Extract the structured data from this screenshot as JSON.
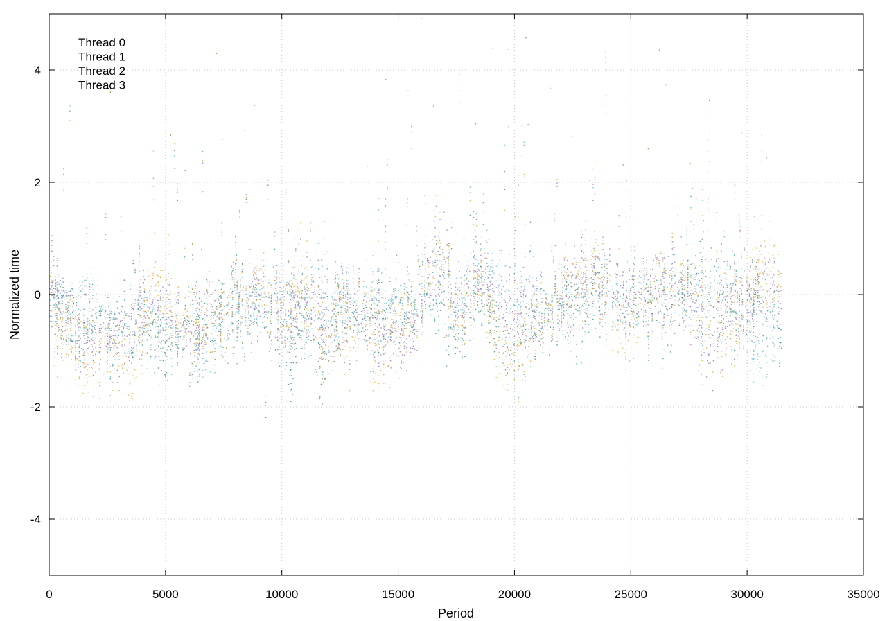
{
  "chart_data": {
    "type": "scatter",
    "title": "",
    "xlabel": "Period",
    "ylabel": "Normalized time",
    "xlim": [
      0,
      35000
    ],
    "ylim": [
      -5,
      5
    ],
    "x_ticks": [
      "0",
      "5000",
      "10000",
      "15000",
      "20000",
      "25000",
      "30000",
      "35000"
    ],
    "y_ticks": [
      "-4",
      "-2",
      "0",
      "2",
      "4"
    ],
    "grid": true,
    "legend_position": "top-left",
    "point_count_per_series": 31500,
    "series": [
      {
        "name": "Thread 0",
        "color": "#9467bd",
        "trend": [
          [
            0,
            0.2
          ],
          [
            1000,
            -0.6
          ],
          [
            2000,
            -0.8
          ],
          [
            3000,
            -0.9
          ],
          [
            4000,
            -0.3
          ],
          [
            5000,
            -0.4
          ],
          [
            6000,
            -0.8
          ],
          [
            7000,
            -0.5
          ],
          [
            8000,
            -0.3
          ],
          [
            9000,
            0.0
          ],
          [
            10000,
            -0.3
          ],
          [
            11000,
            -0.2
          ],
          [
            12000,
            -0.4
          ],
          [
            13000,
            -0.2
          ],
          [
            14000,
            -0.5
          ],
          [
            15000,
            -0.9
          ],
          [
            16000,
            -0.3
          ],
          [
            16600,
            0.8
          ],
          [
            17500,
            -0.2
          ],
          [
            18500,
            0.4
          ],
          [
            19500,
            -0.4
          ],
          [
            20500,
            -0.2
          ],
          [
            21500,
            -0.3
          ],
          [
            22500,
            0.1
          ],
          [
            23500,
            0.3
          ],
          [
            24500,
            0.2
          ],
          [
            25500,
            0.0
          ],
          [
            26500,
            0.1
          ],
          [
            27500,
            -0.2
          ],
          [
            28300,
            -1.0
          ],
          [
            29500,
            -0.3
          ],
          [
            30500,
            0.1
          ],
          [
            31400,
            0.2
          ]
        ]
      },
      {
        "name": "Thread 1",
        "color": "#2e8b6e",
        "trend": [
          [
            0,
            0.0
          ],
          [
            1000,
            -0.6
          ],
          [
            2000,
            -0.5
          ],
          [
            3000,
            -0.6
          ],
          [
            4000,
            -0.5
          ],
          [
            5000,
            -1.0
          ],
          [
            6000,
            -0.6
          ],
          [
            7000,
            -0.3
          ],
          [
            8000,
            -0.2
          ],
          [
            9000,
            -0.3
          ],
          [
            10000,
            -0.5
          ],
          [
            10300,
            -1.3
          ],
          [
            11000,
            -0.3
          ],
          [
            11500,
            -1.4
          ],
          [
            12500,
            -0.2
          ],
          [
            13500,
            -0.5
          ],
          [
            14500,
            -0.3
          ],
          [
            15500,
            -0.2
          ],
          [
            16500,
            0.2
          ],
          [
            17500,
            -0.6
          ],
          [
            18500,
            0.0
          ],
          [
            19500,
            -0.7
          ],
          [
            20500,
            -0.8
          ],
          [
            21500,
            -0.3
          ],
          [
            22500,
            -0.1
          ],
          [
            23500,
            0.0
          ],
          [
            24500,
            0.2
          ],
          [
            25500,
            -0.1
          ],
          [
            26500,
            -0.5
          ],
          [
            27500,
            0.2
          ],
          [
            28500,
            0.1
          ],
          [
            29500,
            -0.2
          ],
          [
            30500,
            0.0
          ],
          [
            31400,
            -0.5
          ]
        ]
      },
      {
        "name": "Thread 2",
        "color": "#5ab4d2",
        "trend": [
          [
            0,
            0.1
          ],
          [
            1000,
            -0.5
          ],
          [
            2000,
            -0.4
          ],
          [
            3000,
            -0.6
          ],
          [
            4000,
            -0.4
          ],
          [
            5000,
            -0.6
          ],
          [
            6000,
            -0.7
          ],
          [
            6500,
            -1.2
          ],
          [
            7500,
            -0.4
          ],
          [
            8500,
            -0.3
          ],
          [
            9500,
            -0.1
          ],
          [
            10500,
            -0.3
          ],
          [
            11500,
            0.0
          ],
          [
            12500,
            -0.2
          ],
          [
            13500,
            -0.1
          ],
          [
            14500,
            -0.2
          ],
          [
            15500,
            -0.3
          ],
          [
            16500,
            0.2
          ],
          [
            17500,
            -0.1
          ],
          [
            18500,
            0.5
          ],
          [
            19500,
            0.1
          ],
          [
            20500,
            -0.2
          ],
          [
            21500,
            -0.2
          ],
          [
            22500,
            -0.3
          ],
          [
            23500,
            0.3
          ],
          [
            24500,
            0.0
          ],
          [
            25500,
            -0.2
          ],
          [
            26500,
            0.2
          ],
          [
            27500,
            0.0
          ],
          [
            28500,
            -0.1
          ],
          [
            29500,
            -0.2
          ],
          [
            30500,
            -1.1
          ],
          [
            31400,
            -0.4
          ]
        ]
      },
      {
        "name": "Thread 3",
        "color": "#e3a72f",
        "trend": [
          [
            0,
            0.6
          ],
          [
            300,
            -0.6
          ],
          [
            1000,
            -0.7
          ],
          [
            1500,
            -1.3
          ],
          [
            2500,
            -0.9
          ],
          [
            3500,
            -1.4
          ],
          [
            4500,
            0.2
          ],
          [
            5000,
            -0.2
          ],
          [
            5500,
            -0.5
          ],
          [
            6500,
            -0.6
          ],
          [
            7500,
            -0.4
          ],
          [
            8500,
            -0.2
          ],
          [
            9000,
            0.2
          ],
          [
            10000,
            -0.4
          ],
          [
            11000,
            0.2
          ],
          [
            11500,
            -0.8
          ],
          [
            12500,
            -0.3
          ],
          [
            13000,
            -0.8
          ],
          [
            13500,
            0.0
          ],
          [
            14000,
            -1.0
          ],
          [
            15000,
            -0.5
          ],
          [
            16000,
            -0.1
          ],
          [
            16600,
            1.0
          ],
          [
            17500,
            -0.4
          ],
          [
            18500,
            0.3
          ],
          [
            19500,
            -1.1
          ],
          [
            20500,
            -0.7
          ],
          [
            21500,
            -0.2
          ],
          [
            22500,
            0.1
          ],
          [
            23500,
            0.6
          ],
          [
            24000,
            -0.2
          ],
          [
            25000,
            -0.6
          ],
          [
            26000,
            0.0
          ],
          [
            27000,
            0.3
          ],
          [
            28000,
            -0.3
          ],
          [
            29000,
            -0.8
          ],
          [
            30500,
            0.4
          ],
          [
            31400,
            0.5
          ]
        ]
      }
    ]
  }
}
